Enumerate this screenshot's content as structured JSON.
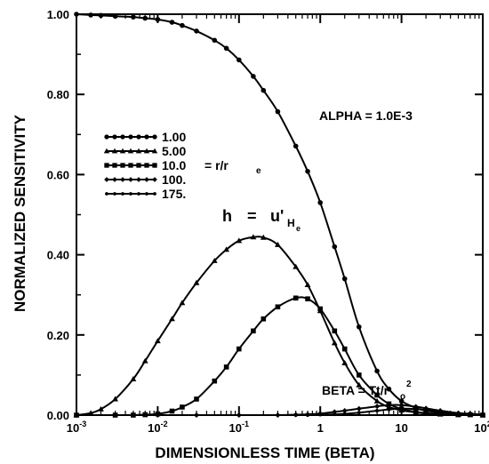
{
  "chart_data": {
    "type": "line",
    "xlabel": "DIMENSIONLESS TIME (BETA)",
    "ylabel": "NORMALIZED SENSITIVITY",
    "xscale": "log",
    "xlim": [
      0.001,
      100
    ],
    "ylim": [
      0,
      1.0
    ],
    "grid": false,
    "x_tick_labels": [
      {
        "base": "10",
        "exp": "-3"
      },
      {
        "base": "10",
        "exp": "-2"
      },
      {
        "base": "10",
        "exp": "-1"
      },
      {
        "base": "1",
        "exp": ""
      },
      {
        "base": "10",
        "exp": ""
      },
      {
        "base": "10",
        "exp": "2"
      }
    ],
    "y_tick_labels": [
      "0.00",
      "0.20",
      "0.40",
      "0.60",
      "0.80",
      "1.00"
    ],
    "annotations": {
      "alpha": "ALPHA = 1.0E-3",
      "formula_h": "h",
      "formula_eq": "=",
      "formula_u": "u'",
      "formula_sub": "H",
      "formula_subsub": "e",
      "beta_main": "BETA = Tt/r",
      "beta_sub": "o",
      "beta_sup": "2"
    },
    "legend_placement": "left",
    "legend_suffix": {
      "text": "= r/r",
      "sub": "e"
    },
    "series": [
      {
        "name": "1.00",
        "marker": "circle",
        "x": [
          0.001,
          0.0015,
          0.002,
          0.003,
          0.005,
          0.007,
          0.01,
          0.015,
          0.02,
          0.03,
          0.05,
          0.07,
          0.1,
          0.15,
          0.2,
          0.3,
          0.5,
          0.7,
          1.0,
          1.5,
          2,
          3,
          5,
          7,
          10,
          15,
          20,
          30,
          50,
          70,
          100
        ],
        "y": [
          1.0,
          0.998,
          0.997,
          0.995,
          0.993,
          0.99,
          0.987,
          0.98,
          0.972,
          0.958,
          0.935,
          0.915,
          0.886,
          0.845,
          0.81,
          0.757,
          0.671,
          0.608,
          0.53,
          0.42,
          0.34,
          0.22,
          0.11,
          0.065,
          0.035,
          0.018,
          0.011,
          0.006,
          0.003,
          0.002,
          0.001
        ]
      },
      {
        "name": "5.00",
        "marker": "triangle",
        "x": [
          0.001,
          0.0015,
          0.002,
          0.003,
          0.005,
          0.007,
          0.01,
          0.015,
          0.02,
          0.03,
          0.05,
          0.07,
          0.1,
          0.15,
          0.2,
          0.3,
          0.5,
          0.7,
          1.0,
          1.5,
          2,
          3,
          5,
          7,
          10,
          15,
          20,
          30,
          50,
          70,
          100
        ],
        "y": [
          0.0,
          0.005,
          0.015,
          0.04,
          0.09,
          0.135,
          0.185,
          0.24,
          0.28,
          0.33,
          0.385,
          0.413,
          0.435,
          0.444,
          0.443,
          0.425,
          0.37,
          0.325,
          0.26,
          0.18,
          0.13,
          0.075,
          0.035,
          0.02,
          0.012,
          0.007,
          0.004,
          0.002,
          0.001,
          0.001,
          0.0
        ]
      },
      {
        "name": "10.0",
        "marker": "square",
        "x": [
          0.001,
          0.003,
          0.005,
          0.007,
          0.01,
          0.015,
          0.02,
          0.03,
          0.05,
          0.07,
          0.1,
          0.15,
          0.2,
          0.3,
          0.5,
          0.7,
          1.0,
          1.5,
          2,
          3,
          5,
          7,
          10,
          15,
          20,
          30,
          50,
          70,
          100
        ],
        "y": [
          0.0,
          0.0,
          0.0,
          0.001,
          0.003,
          0.01,
          0.02,
          0.04,
          0.085,
          0.12,
          0.165,
          0.21,
          0.24,
          0.27,
          0.292,
          0.29,
          0.265,
          0.21,
          0.165,
          0.1,
          0.05,
          0.028,
          0.015,
          0.008,
          0.005,
          0.003,
          0.001,
          0.001,
          0.0
        ]
      },
      {
        "name": "100.",
        "marker": "diamond",
        "x": [
          0.001,
          0.01,
          0.03,
          0.1,
          0.3,
          0.5,
          0.7,
          1.0,
          1.5,
          2,
          3,
          5,
          7,
          10,
          15,
          20,
          30,
          50,
          70,
          100
        ],
        "y": [
          0.0,
          0.0,
          0.0,
          0.0,
          0.0,
          0.001,
          0.002,
          0.004,
          0.008,
          0.011,
          0.016,
          0.022,
          0.025,
          0.025,
          0.021,
          0.017,
          0.011,
          0.005,
          0.003,
          0.001
        ]
      },
      {
        "name": "175.",
        "marker": "small-circle",
        "x": [
          0.001,
          0.01,
          0.03,
          0.1,
          0.3,
          0.5,
          0.7,
          1.0,
          1.5,
          2,
          3,
          5,
          7,
          10,
          15,
          20,
          30,
          50,
          70,
          100
        ],
        "y": [
          0.0,
          0.0,
          0.0,
          0.0,
          0.0,
          0.0,
          0.0,
          0.001,
          0.002,
          0.003,
          0.006,
          0.011,
          0.014,
          0.016,
          0.015,
          0.013,
          0.009,
          0.005,
          0.003,
          0.001
        ]
      }
    ]
  }
}
